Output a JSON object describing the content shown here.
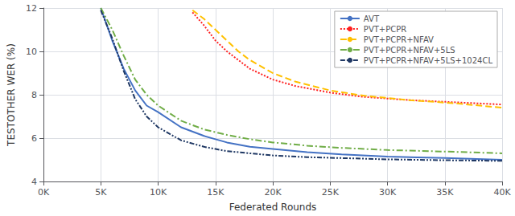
{
  "chart_data": {
    "type": "line",
    "xlabel": "Federated Rounds",
    "ylabel": "TESTOTHER WER (%)",
    "xlim": [
      0,
      40000
    ],
    "ylim": [
      4,
      12
    ],
    "xticks": [
      {
        "value": 0,
        "label": "0K"
      },
      {
        "value": 5000,
        "label": "5K"
      },
      {
        "value": 10000,
        "label": "10K"
      },
      {
        "value": 15000,
        "label": "15K"
      },
      {
        "value": 20000,
        "label": "20K"
      },
      {
        "value": 25000,
        "label": "25K"
      },
      {
        "value": 30000,
        "label": "30K"
      },
      {
        "value": 35000,
        "label": "35K"
      },
      {
        "value": 40000,
        "label": "40K"
      }
    ],
    "yticks": [
      4,
      6,
      8,
      10,
      12
    ],
    "grid": true,
    "legend": "upper right",
    "series": [
      {
        "name": "AVT",
        "color": "#4472C4",
        "line_style": "solid",
        "x": [
          5000,
          6000,
          7000,
          8000,
          9000,
          10000,
          12000,
          14000,
          16000,
          18000,
          20000,
          23000,
          26000,
          30000,
          35000,
          40000
        ],
        "values": [
          12.0,
          10.5,
          9.2,
          8.2,
          7.5,
          7.2,
          6.5,
          6.1,
          5.8,
          5.6,
          5.5,
          5.35,
          5.25,
          5.15,
          5.08,
          5.0
        ]
      },
      {
        "name": "PVT+PCPR",
        "color": "#FF2020",
        "line_style": "dotted",
        "x": [
          13000,
          14000,
          15000,
          16000,
          17000,
          18000,
          20000,
          22000,
          25000,
          28000,
          32000,
          36000,
          40000
        ],
        "values": [
          11.8,
          11.2,
          10.5,
          10.0,
          9.6,
          9.2,
          8.7,
          8.4,
          8.1,
          7.9,
          7.75,
          7.65,
          7.55
        ]
      },
      {
        "name": "PVT+PCPR+NFAV",
        "color": "#FFC000",
        "line_style": "dashed",
        "x": [
          13000,
          14000,
          15000,
          16000,
          17000,
          18000,
          20000,
          22000,
          25000,
          28000,
          32000,
          36000,
          40000
        ],
        "values": [
          11.9,
          11.5,
          11.0,
          10.5,
          10.0,
          9.6,
          9.0,
          8.6,
          8.2,
          7.95,
          7.75,
          7.6,
          7.4
        ]
      },
      {
        "name": "PVT+PCPR+NFAV+5LS",
        "color": "#70AD47",
        "line_style": "dashdot",
        "x": [
          5000,
          6000,
          7000,
          8000,
          9000,
          10000,
          12000,
          14000,
          16000,
          18000,
          20000,
          23000,
          26000,
          30000,
          35000,
          40000
        ],
        "values": [
          12.0,
          11.0,
          9.8,
          8.7,
          8.0,
          7.5,
          6.8,
          6.4,
          6.15,
          5.95,
          5.8,
          5.65,
          5.55,
          5.45,
          5.38,
          5.3
        ]
      },
      {
        "name": "PVT+PCPR+NFAV+5LS+1024CL",
        "color": "#1F3864",
        "line_style": "dashdotdot",
        "x": [
          5000,
          6000,
          7000,
          8000,
          9000,
          10000,
          12000,
          14000,
          16000,
          18000,
          20000,
          23000,
          26000,
          30000,
          35000,
          40000
        ],
        "values": [
          11.9,
          10.6,
          9.1,
          7.8,
          7.0,
          6.5,
          5.9,
          5.6,
          5.4,
          5.3,
          5.2,
          5.12,
          5.08,
          5.02,
          4.98,
          4.95
        ]
      }
    ]
  }
}
